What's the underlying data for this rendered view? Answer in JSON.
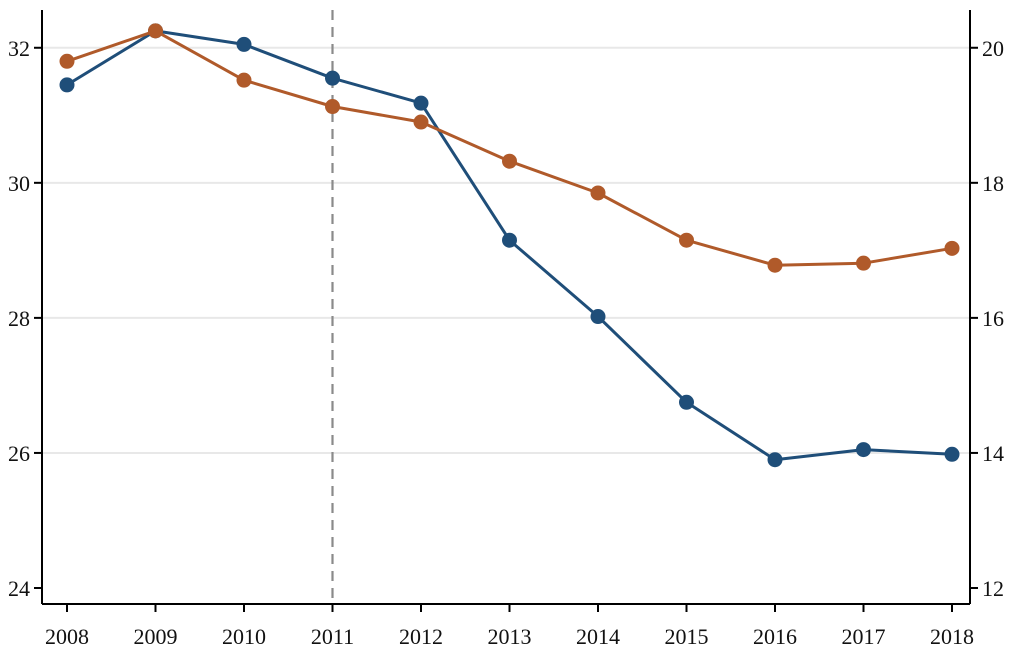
{
  "chart_data": {
    "type": "line",
    "title": "",
    "xlabel": "",
    "ylabel": "",
    "y2label": "",
    "x": [
      2008,
      2009,
      2010,
      2011,
      2012,
      2013,
      2014,
      2015,
      2016,
      2017,
      2018
    ],
    "xlim": [
      2008,
      2018
    ],
    "ylim": [
      24,
      32.5
    ],
    "y2lim": [
      12,
      20.5
    ],
    "yticks": [
      24,
      26,
      28,
      30,
      32
    ],
    "y2ticks": [
      12,
      14,
      16,
      18,
      20
    ],
    "grid": true,
    "reference_line": {
      "x": 2011,
      "style": "dashed",
      "color": "#8a8a8a"
    },
    "series": [
      {
        "axis": "left",
        "color": "#1f4e79",
        "values": [
          31.45,
          32.25,
          32.05,
          31.55,
          31.18,
          29.15,
          28.02,
          26.75,
          25.9,
          26.05,
          25.98
        ]
      },
      {
        "axis": "right",
        "color": "#b05a2a",
        "values": [
          19.8,
          20.25,
          19.52,
          19.13,
          18.9,
          18.32,
          17.85,
          17.15,
          16.78,
          16.81,
          17.03
        ]
      }
    ]
  }
}
